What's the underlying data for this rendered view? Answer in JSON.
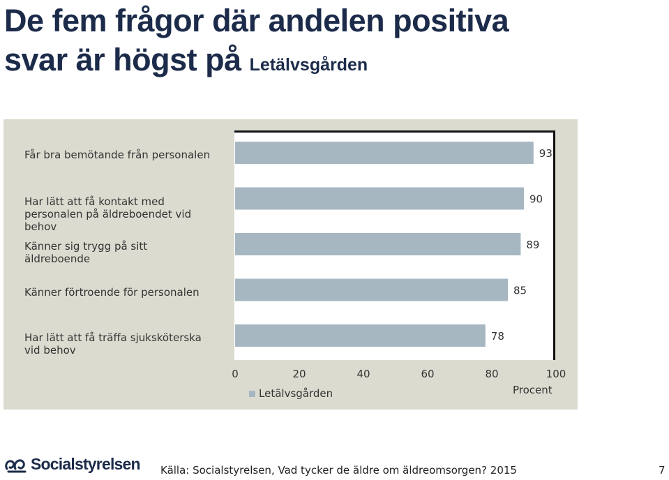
{
  "title": {
    "line1": "De fem frågor där andelen positiva",
    "line2": "svar är högst på",
    "unit_name": "Letälvsgården"
  },
  "chart_data": {
    "type": "bar",
    "orientation": "horizontal",
    "categories": [
      "Får bra bemötande från personalen",
      "Har lätt att få kontakt med personalen på äldreboendet vid behov",
      "Känner sig trygg på sitt äldreboende",
      "Känner förtroende för personalen",
      "Har lätt att få träffa sjuksköterska vid behov"
    ],
    "series": [
      {
        "name": "Letälvsgården",
        "values": [
          93,
          90,
          89,
          85,
          78
        ],
        "color": "#a7b7c2"
      }
    ],
    "xlim": [
      0,
      100
    ],
    "xticks": [
      0,
      20,
      40,
      60,
      80,
      100
    ],
    "xlabel": "Procent",
    "legend": "bottom-left"
  },
  "category_labels": [
    "Får bra bemötande från personalen",
    "Har lätt att få kontakt med personalen på äldreboendet vid behov",
    "Känner sig trygg på sitt äldreboende",
    "Känner förtroende för personalen",
    "Har lätt att få träffa sjuksköterska vid behov"
  ],
  "legend_label": "Letälvsgården",
  "axis_unit": "Procent",
  "footer": {
    "logo_text": "Socialstyrelsen",
    "source": "Källa: Socialstyrelsen, Vad tycker de äldre om äldreomsorgen? 2015",
    "page_number": "7"
  }
}
